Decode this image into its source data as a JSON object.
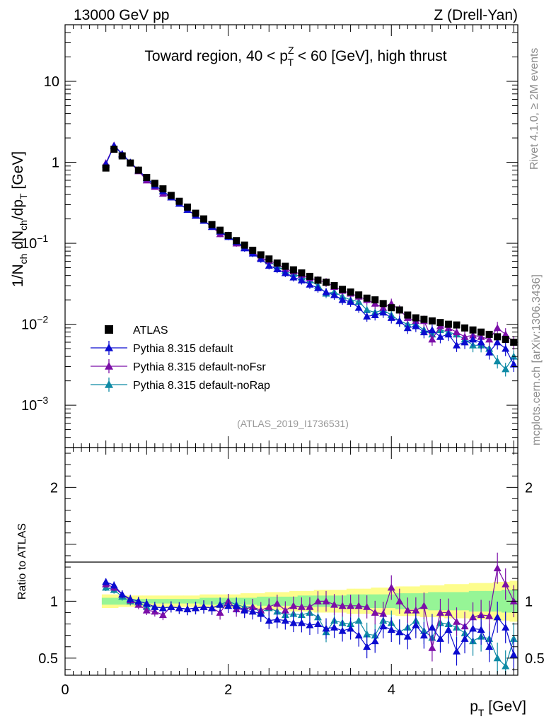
{
  "header": {
    "energy_label": "13000 GeV pp",
    "process_label": "Z (Drell-Yan)",
    "side_label_top": "Rivet 4.1.0, ≥ 2M events",
    "side_label_bottom": "mcplots.cern.ch [arXiv:1306.3436]",
    "analysis_tag": "(ATLAS_2019_I1736531)"
  },
  "colors": {
    "data": "#000000",
    "default": "#0b0bd0",
    "noFsr": "#7b0ea8",
    "noRap": "#0e8aa5",
    "band_outer": "#fdfd8c",
    "band_inner": "#96f596"
  },
  "chart_data": [
    {
      "type": "scatter",
      "title_parts": {
        "prefix": "Toward region, 40 < p",
        "sub": "T",
        "sup": "Z",
        "suffix": " < 60 [GeV], high thrust"
      },
      "ylabel": "1/N_ch dN_ch/dp_T [GeV]",
      "ylabel_parts": {
        "a": "1/N",
        "a_sub": "ch",
        "b": " dN",
        "b_sub": "ch",
        "c": "/dp",
        "c_sub": "T",
        "d": " [GeV]"
      },
      "yscale": "log",
      "ylim": [
        0.0003,
        50
      ],
      "xlim": [
        0,
        5.55
      ],
      "y_tick_labels": [
        {
          "value": 10,
          "label": "10",
          "exp": ""
        },
        {
          "value": 1,
          "label": "1",
          "exp": ""
        },
        {
          "value": 0.1,
          "label": "10",
          "exp": "−1"
        },
        {
          "value": 0.01,
          "label": "10",
          "exp": "−2"
        },
        {
          "value": 0.001,
          "label": "10",
          "exp": "−3"
        }
      ],
      "legend_position": "lower-left",
      "x": [
        0.5,
        0.6,
        0.7,
        0.8,
        0.9,
        1.0,
        1.1,
        1.2,
        1.3,
        1.4,
        1.5,
        1.6,
        1.7,
        1.8,
        1.9,
        2.0,
        2.1,
        2.2,
        2.3,
        2.4,
        2.5,
        2.6,
        2.7,
        2.8,
        2.9,
        3.0,
        3.1,
        3.2,
        3.3,
        3.4,
        3.5,
        3.6,
        3.7,
        3.8,
        3.9,
        4.0,
        4.1,
        4.2,
        4.3,
        4.4,
        4.5,
        4.6,
        4.7,
        4.8,
        4.9,
        5.0,
        5.1,
        5.2,
        5.3,
        5.4,
        5.5
      ],
      "series": [
        {
          "name": "ATLAS",
          "key": "data",
          "marker": "square",
          "values": [
            0.85,
            1.45,
            1.2,
            0.98,
            0.8,
            0.65,
            0.55,
            0.47,
            0.39,
            0.33,
            0.28,
            0.235,
            0.2,
            0.17,
            0.145,
            0.125,
            0.108,
            0.095,
            0.082,
            0.072,
            0.064,
            0.057,
            0.052,
            0.047,
            0.043,
            0.039,
            0.035,
            0.033,
            0.03,
            0.027,
            0.025,
            0.023,
            0.021,
            0.02,
            0.018,
            0.016,
            0.015,
            0.013,
            0.012,
            0.0115,
            0.011,
            0.0105,
            0.01,
            0.0098,
            0.009,
            0.0085,
            0.008,
            0.0075,
            0.007,
            0.0065,
            0.006
          ]
        },
        {
          "name": "Pythia 8.315 default",
          "key": "default",
          "marker": "triangle",
          "values": [
            0.95,
            1.6,
            1.27,
            1.0,
            0.8,
            0.64,
            0.52,
            0.44,
            0.37,
            0.31,
            0.26,
            0.22,
            0.19,
            0.16,
            0.14,
            0.12,
            0.104,
            0.087,
            0.075,
            0.064,
            0.053,
            0.048,
            0.043,
            0.038,
            0.035,
            0.031,
            0.028,
            0.025,
            0.023,
            0.02,
            0.019,
            0.016,
            0.0125,
            0.013,
            0.014,
            0.012,
            0.011,
            0.009,
            0.0095,
            0.008,
            0.0085,
            0.007,
            0.0075,
            0.0055,
            0.006,
            0.0065,
            0.006,
            0.0045,
            0.006,
            0.005,
            0.0032
          ]
        },
        {
          "name": "Pythia 8.315 default-noFsr",
          "key": "noFsr",
          "marker": "triangle",
          "values": [
            0.98,
            1.62,
            1.27,
            0.99,
            0.78,
            0.6,
            0.5,
            0.41,
            0.37,
            0.31,
            0.26,
            0.22,
            0.19,
            0.16,
            0.13,
            0.125,
            0.1,
            0.088,
            0.078,
            0.066,
            0.061,
            0.056,
            0.048,
            0.045,
            0.041,
            0.037,
            0.035,
            0.033,
            0.029,
            0.026,
            0.024,
            0.022,
            0.02,
            0.018,
            0.016,
            0.018,
            0.015,
            0.012,
            0.011,
            0.011,
            0.0065,
            0.0095,
            0.009,
            0.008,
            0.007,
            0.0073,
            0.007,
            0.0065,
            0.009,
            0.0075,
            0.006
          ]
        },
        {
          "name": "Pythia 8.315 default-noRap",
          "key": "noRap",
          "marker": "triangle",
          "values": [
            0.95,
            1.6,
            1.25,
            0.98,
            0.79,
            0.62,
            0.52,
            0.44,
            0.37,
            0.31,
            0.26,
            0.22,
            0.19,
            0.16,
            0.14,
            0.125,
            0.105,
            0.09,
            0.078,
            0.065,
            0.06,
            0.052,
            0.046,
            0.042,
            0.038,
            0.035,
            0.03,
            0.024,
            0.025,
            0.022,
            0.02,
            0.019,
            0.015,
            0.014,
            0.015,
            0.013,
            0.011,
            0.01,
            0.01,
            0.0085,
            0.0075,
            0.0085,
            0.008,
            0.0075,
            0.0065,
            0.0055,
            0.0055,
            0.005,
            0.0035,
            0.0028,
            0.004
          ]
        }
      ]
    },
    {
      "type": "scatter",
      "ylabel": "Ratio to ATLAS",
      "xlabel": "p_T [GeV]",
      "xlabel_parts": {
        "a": "p",
        "a_sub": "T",
        "b": " [GeV]"
      },
      "ylim": [
        0.35,
        2.35
      ],
      "xlim": [
        0,
        5.55
      ],
      "x_tick_labels": [
        {
          "value": 0,
          "label": "0"
        },
        {
          "value": 2,
          "label": "2"
        },
        {
          "value": 4,
          "label": "4"
        }
      ],
      "y_tick_labels": [
        {
          "value": 2,
          "label": "2"
        },
        {
          "value": 1,
          "label": "1"
        },
        {
          "value": 0.5,
          "label": "0.5"
        }
      ],
      "band_outer_halfwidth": [
        0.06,
        0.06,
        0.05,
        0.05,
        0.05,
        0.05,
        0.05,
        0.05,
        0.05,
        0.05,
        0.05,
        0.05,
        0.06,
        0.06,
        0.06,
        0.06,
        0.06,
        0.07,
        0.07,
        0.07,
        0.08,
        0.08,
        0.08,
        0.09,
        0.09,
        0.09,
        0.1,
        0.1,
        0.1,
        0.1,
        0.11,
        0.11,
        0.11,
        0.12,
        0.12,
        0.12,
        0.13,
        0.13,
        0.13,
        0.14,
        0.14,
        0.14,
        0.15,
        0.15,
        0.15,
        0.16,
        0.16,
        0.16,
        0.17,
        0.17,
        0.18
      ],
      "band_inner_halfwidth": [
        0.03,
        0.03,
        0.03,
        0.02,
        0.02,
        0.02,
        0.02,
        0.02,
        0.02,
        0.02,
        0.02,
        0.02,
        0.03,
        0.03,
        0.03,
        0.03,
        0.03,
        0.03,
        0.03,
        0.04,
        0.04,
        0.04,
        0.04,
        0.04,
        0.05,
        0.05,
        0.05,
        0.05,
        0.05,
        0.05,
        0.06,
        0.06,
        0.06,
        0.06,
        0.06,
        0.06,
        0.07,
        0.07,
        0.07,
        0.07,
        0.08,
        0.08,
        0.08,
        0.08,
        0.08,
        0.09,
        0.09,
        0.09,
        0.09,
        0.1,
        0.1
      ],
      "series": [
        {
          "name": "Pythia 8.315 default",
          "key": "default",
          "values": [
            1.17,
            1.14,
            1.06,
            1.02,
            1.0,
            0.98,
            0.95,
            0.94,
            0.95,
            0.94,
            0.93,
            0.94,
            0.95,
            0.94,
            0.97,
            0.96,
            0.96,
            0.92,
            0.91,
            0.89,
            0.83,
            0.84,
            0.83,
            0.81,
            0.81,
            0.79,
            0.8,
            0.76,
            0.77,
            0.74,
            0.76,
            0.7,
            0.6,
            0.65,
            0.78,
            0.75,
            0.73,
            0.69,
            0.79,
            0.7,
            0.77,
            0.67,
            0.75,
            0.56,
            0.67,
            0.76,
            0.75,
            0.6,
            0.86,
            0.77,
            0.53
          ]
        },
        {
          "name": "Pythia 8.315 default-noFsr",
          "key": "noFsr",
          "values": [
            1.15,
            1.12,
            1.06,
            1.01,
            0.97,
            0.92,
            0.91,
            0.88,
            0.95,
            0.94,
            0.93,
            0.94,
            0.95,
            0.94,
            0.9,
            1.0,
            0.93,
            0.93,
            0.95,
            0.92,
            0.95,
            0.98,
            0.92,
            0.96,
            0.95,
            0.95,
            1.0,
            1.0,
            0.97,
            0.96,
            0.96,
            0.96,
            0.95,
            0.9,
            0.89,
            1.12,
            1.0,
            0.92,
            0.92,
            0.96,
            0.59,
            0.9,
            0.9,
            0.82,
            0.78,
            0.86,
            0.88,
            0.87,
            1.29,
            1.15,
            1.0
          ]
        },
        {
          "name": "Pythia 8.315 default-noRap",
          "key": "noRap",
          "values": [
            1.12,
            1.1,
            1.04,
            1.0,
            0.99,
            0.95,
            0.95,
            0.94,
            0.95,
            0.94,
            0.93,
            0.94,
            0.95,
            0.94,
            0.97,
            1.0,
            0.97,
            0.95,
            0.95,
            0.9,
            0.94,
            0.91,
            0.88,
            0.89,
            0.88,
            0.9,
            0.86,
            0.73,
            0.83,
            0.81,
            0.8,
            0.83,
            0.71,
            0.7,
            0.83,
            0.81,
            0.73,
            0.77,
            0.83,
            0.74,
            0.68,
            0.81,
            0.8,
            0.77,
            0.72,
            0.65,
            0.69,
            0.67,
            0.5,
            0.43,
            0.67
          ]
        }
      ]
    }
  ]
}
